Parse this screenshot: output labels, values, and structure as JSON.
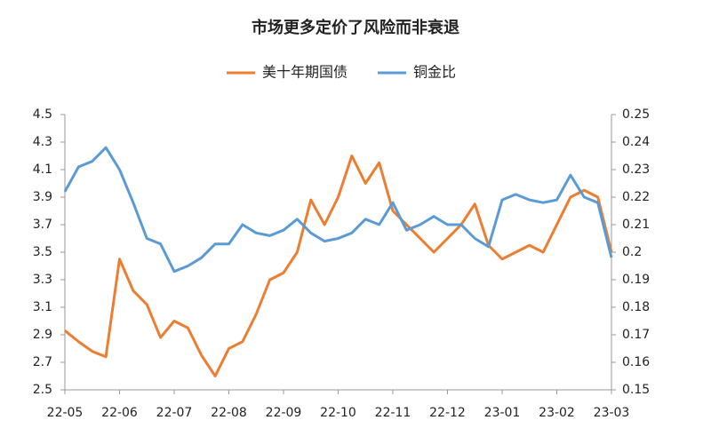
{
  "chart_data": {
    "type": "line",
    "title": "市场更多定价了风险而非衰退",
    "categories": [
      "22-05",
      null,
      null,
      null,
      "22-06",
      null,
      null,
      null,
      "22-07",
      null,
      null,
      null,
      "22-08",
      null,
      null,
      null,
      "22-09",
      null,
      null,
      null,
      "22-10",
      null,
      null,
      null,
      "22-11",
      null,
      null,
      null,
      "22-12",
      null,
      null,
      null,
      "23-01",
      null,
      null,
      null,
      "23-02",
      null,
      null,
      null,
      "23-03"
    ],
    "series": [
      {
        "name": "美十年期国债",
        "color": "#ed7d31",
        "axis": "y",
        "values": [
          2.93,
          2.85,
          2.78,
          2.74,
          3.45,
          3.22,
          3.12,
          2.88,
          3.0,
          2.95,
          2.75,
          2.6,
          2.8,
          2.85,
          3.05,
          3.3,
          3.35,
          3.5,
          3.88,
          3.7,
          3.9,
          4.2,
          4.0,
          4.15,
          3.8,
          3.7,
          3.6,
          3.5,
          3.6,
          3.7,
          3.85,
          3.55,
          3.45,
          3.5,
          3.55,
          3.5,
          3.7,
          3.9,
          3.95,
          3.9,
          3.5
        ]
      },
      {
        "name": "铜金比",
        "color": "#5b9bd5",
        "axis": "y2",
        "values": [
          0.222,
          0.231,
          0.233,
          0.238,
          0.23,
          0.218,
          0.205,
          0.203,
          0.193,
          0.195,
          0.198,
          0.203,
          0.203,
          0.21,
          0.207,
          0.206,
          0.208,
          0.212,
          0.207,
          0.204,
          0.205,
          0.207,
          0.212,
          0.21,
          0.218,
          0.208,
          0.21,
          0.213,
          0.21,
          0.21,
          0.205,
          0.202,
          0.219,
          0.221,
          0.219,
          0.218,
          0.219,
          0.228,
          0.22,
          0.218,
          0.198
        ]
      }
    ],
    "ylim": [
      2.5,
      4.5
    ],
    "yticks": [
      2.5,
      2.7,
      2.9,
      3.1,
      3.3,
      3.5,
      3.7,
      3.9,
      4.1,
      4.3,
      4.5
    ],
    "y2lim": [
      0.15,
      0.25
    ],
    "y2ticks": [
      0.15,
      0.16,
      0.17,
      0.18,
      0.19,
      0.2,
      0.21,
      0.22,
      0.23,
      0.24,
      0.25
    ],
    "legend": "top",
    "grid": false
  }
}
